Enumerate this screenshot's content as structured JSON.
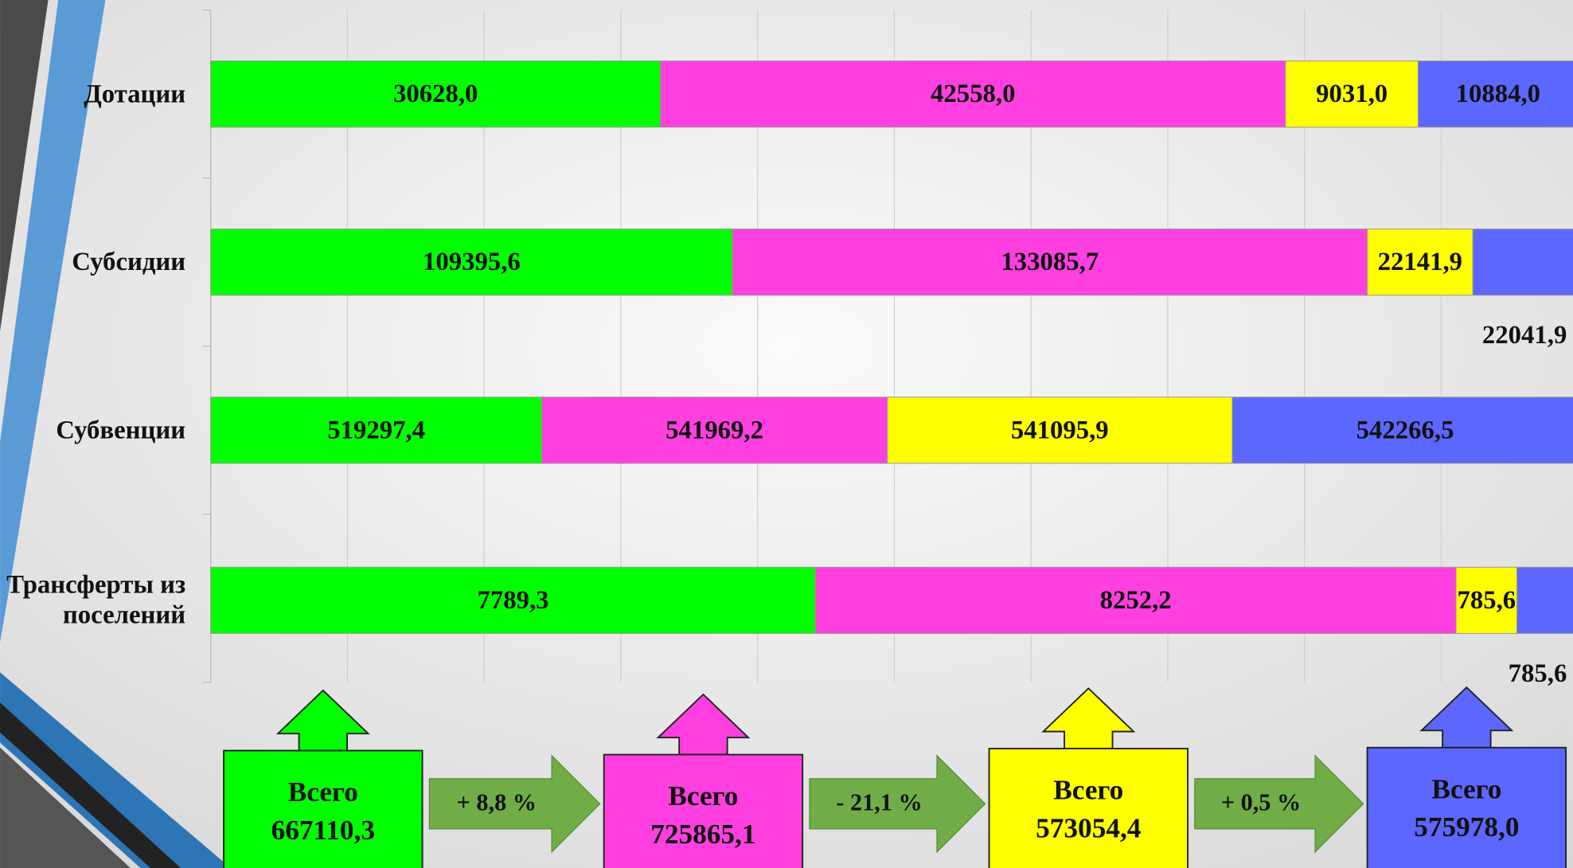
{
  "chart_data": {
    "type": "stacked_bar_100",
    "orientation": "horizontal",
    "categories": [
      "Дотации",
      "Субсидии",
      "Субвенции",
      "Трансферты из поселений"
    ],
    "series": [
      {
        "color": "#00ff00",
        "values": [
          30628.0,
          109395.6,
          519297.4,
          7789.3
        ],
        "value_labels": [
          "30628,0",
          "109395,6",
          "519297,4",
          "7789,3"
        ],
        "total": 667110.3,
        "total_label": "667110,3"
      },
      {
        "color": "#ff3fdf",
        "values": [
          42558.0,
          133085.7,
          541969.2,
          8252.2
        ],
        "value_labels": [
          "42558,0",
          "133085,7",
          "541969,2",
          "8252,2"
        ],
        "total": 725865.1,
        "total_label": "725865,1"
      },
      {
        "color": "#ffff00",
        "values": [
          9031.0,
          22141.9,
          541095.9,
          785.6
        ],
        "value_labels": [
          "9031,0",
          "22141,9",
          "541095,9",
          "785,6"
        ],
        "total": 573054.4,
        "total_label": "573054,4"
      },
      {
        "color": "#5b67ff",
        "values": [
          10884.0,
          22041.9,
          542266.5,
          785.6
        ],
        "value_labels": [
          "10884,0",
          "22041,9",
          "542266,5",
          "785,6"
        ],
        "total": 575978.0,
        "total_label": "575978,0"
      }
    ],
    "total_title": "Всего",
    "changes": [
      "+ 8,8 %",
      "- 21,1 %",
      "+ 0,5 %"
    ],
    "change_color": "#70ad47"
  }
}
